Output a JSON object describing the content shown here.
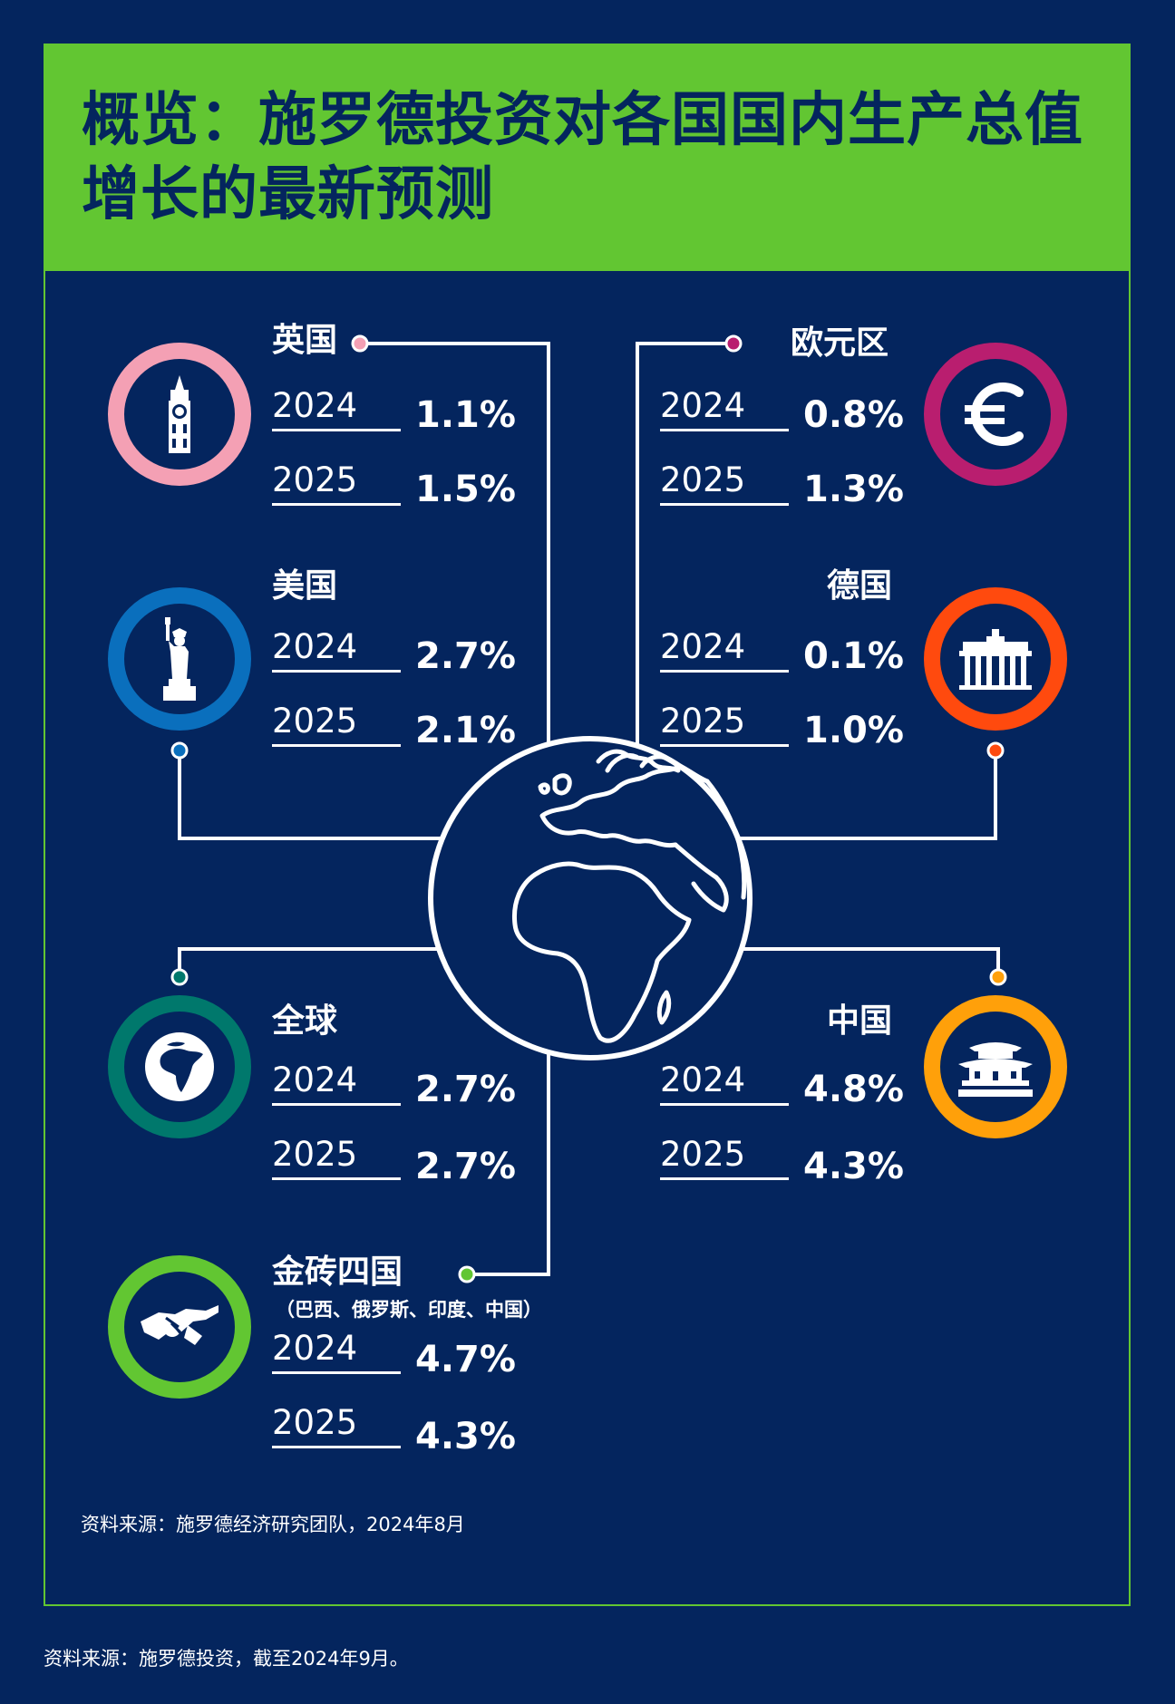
{
  "title": {
    "line1": "概览：施罗德投资对各国国内生产总值",
    "line2": "增长的最新预测"
  },
  "colors": {
    "background": "#04255e",
    "accent_green": "#62c632",
    "uk": "#f4a0b4",
    "eurozone": "#b91e6f",
    "us": "#0a6fbd",
    "germany": "#ff4a0e",
    "global": "#00786c",
    "china": "#ffa00a",
    "bric": "#62c632"
  },
  "regions": {
    "uk": {
      "name": "英国",
      "icon": "big-ben-icon",
      "rows": [
        {
          "year": "2024",
          "value": "1.1%"
        },
        {
          "year": "2025",
          "value": "1.5%"
        }
      ]
    },
    "eurozone": {
      "name": "欧元区",
      "icon": "euro-icon",
      "rows": [
        {
          "year": "2024",
          "value": "0.8%"
        },
        {
          "year": "2025",
          "value": "1.3%"
        }
      ]
    },
    "us": {
      "name": "美国",
      "icon": "statue-of-liberty-icon",
      "rows": [
        {
          "year": "2024",
          "value": "2.7%"
        },
        {
          "year": "2025",
          "value": "2.1%"
        }
      ]
    },
    "germany": {
      "name": "德国",
      "icon": "brandenburg-gate-icon",
      "rows": [
        {
          "year": "2024",
          "value": "0.1%"
        },
        {
          "year": "2025",
          "value": "1.0%"
        }
      ]
    },
    "global": {
      "name": "全球",
      "icon": "globe-icon",
      "rows": [
        {
          "year": "2024",
          "value": "2.7%"
        },
        {
          "year": "2025",
          "value": "2.7%"
        }
      ]
    },
    "china": {
      "name": "中国",
      "icon": "chinese-pagoda-icon",
      "rows": [
        {
          "year": "2024",
          "value": "4.8%"
        },
        {
          "year": "2025",
          "value": "4.3%"
        }
      ]
    },
    "bric": {
      "name": "金砖四国",
      "sub": "（巴西、俄罗斯、印度、中国）",
      "icon": "handshake-icon",
      "rows": [
        {
          "year": "2024",
          "value": "4.7%"
        },
        {
          "year": "2025",
          "value": "4.3%"
        }
      ]
    }
  },
  "center_icon": "world-globe-icon",
  "source_inner": "资料来源：施罗德经济研究团队，2024年8月",
  "source_footer": "资料来源：施罗德投资，截至2024年9月。"
}
